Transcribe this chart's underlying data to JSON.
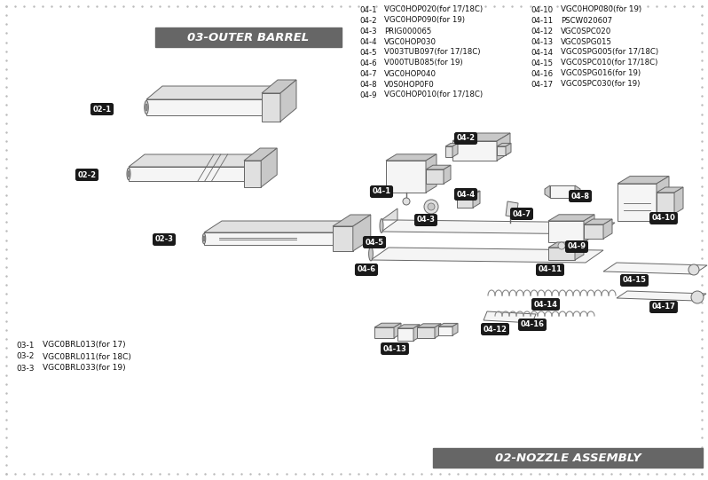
{
  "bg_color": "#ffffff",
  "border_dot_color": "#bbbbbb",
  "title_03": "03-OUTER BARREL",
  "title_02": "02-NOZZLE ASSEMBLY",
  "title_box_color": "#666666",
  "parts_list_03": [
    [
      "03-1",
      "VGC0BRL013(for 17)"
    ],
    [
      "03-2",
      "VGC0BRL011(for 18C)"
    ],
    [
      "03-3",
      "VGC0BRL033(for 19)"
    ]
  ],
  "parts_list_04_left": [
    [
      "04-1",
      "VGC0HOP020(for 17/18C)"
    ],
    [
      "04-2",
      "VGC0HOP090(for 19)"
    ],
    [
      "04-3",
      "PRIG000065"
    ],
    [
      "04-4",
      "VGC0HOP030"
    ],
    [
      "04-5",
      "V003TUB097(for 17/18C)"
    ],
    [
      "04-6",
      "V000TUB085(for 19)"
    ],
    [
      "04-7",
      "VGC0HOP040"
    ],
    [
      "04-8",
      "V0S0HOP0F0"
    ],
    [
      "04-9",
      "VGC0HOP010(for 17/18C)"
    ]
  ],
  "parts_list_04_right": [
    [
      "04-10",
      "VGC0HOP080(for 19)"
    ],
    [
      "04-11",
      "PSCW020607"
    ],
    [
      "04-12",
      "VGC0SPC020"
    ],
    [
      "04-13",
      "VGC0SPG015"
    ],
    [
      "04-14",
      "VGC0SPG005(for 17/18C)"
    ],
    [
      "04-15",
      "VGC0SPC010(for 17/18C)"
    ],
    [
      "04-16",
      "VGC0SPG016(for 19)"
    ],
    [
      "04-17",
      "VGC0SPC030(for 19)"
    ]
  ],
  "figsize": [
    7.98,
    5.41
  ],
  "dpi": 100
}
